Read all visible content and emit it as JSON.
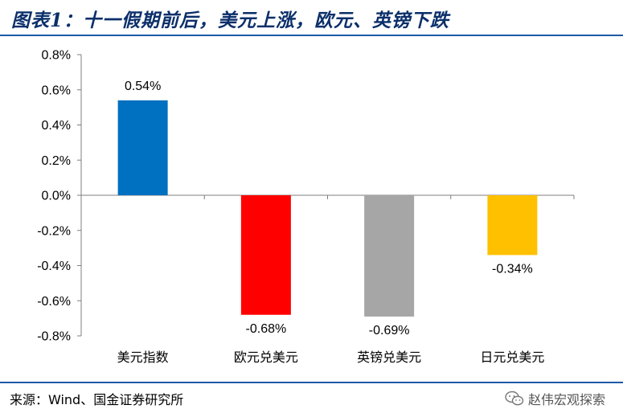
{
  "header": {
    "title": "图表1：十一假期前后，美元上涨，欧元、英镑下跌"
  },
  "footer": {
    "source": "来源：Wind、国金证券研究所",
    "watermark": "赵伟宏观探索",
    "watermark_icon": "wechat-icon"
  },
  "colors": {
    "title": "#0b2f6a",
    "rule": "#1c5aa8"
  },
  "chart_data": {
    "type": "bar",
    "categories": [
      "美元指数",
      "欧元兑美元",
      "英镑兑美元",
      "日元兑美元"
    ],
    "values": [
      0.54,
      -0.68,
      -0.69,
      -0.34
    ],
    "data_labels": [
      "0.54%",
      "-0.68%",
      "-0.69%",
      "-0.34%"
    ],
    "bar_colors": [
      "#0070c0",
      "#ff0000",
      "#a6a6a6",
      "#ffc000"
    ],
    "y_ticks": [
      "0.8%",
      "0.6%",
      "0.4%",
      "0.2%",
      "0.0%",
      "-0.2%",
      "-0.4%",
      "-0.6%",
      "-0.8%"
    ],
    "ylim": [
      -0.8,
      0.8
    ],
    "ylabel": "",
    "xlabel": "",
    "grid": false,
    "legend": "none"
  }
}
